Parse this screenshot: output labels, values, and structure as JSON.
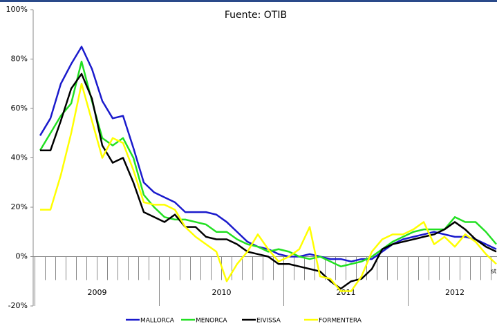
{
  "chart_data": {
    "type": "line",
    "title": "Fuente: OTIB",
    "annotation": "st",
    "categories": [
      null,
      null,
      null,
      null,
      null,
      null,
      null,
      null,
      null,
      null,
      null,
      null,
      null,
      null,
      null,
      null,
      null,
      null,
      null,
      null,
      null,
      null,
      null,
      null,
      null,
      null,
      null,
      null,
      null,
      null,
      null,
      null,
      null,
      null,
      null,
      null,
      null,
      null,
      null,
      null,
      null,
      null,
      null,
      null,
      null
    ],
    "year_labels": [
      "2009",
      "2010",
      "2011",
      "2012"
    ],
    "ylim": [
      -20,
      100
    ],
    "yticks": [
      {
        "value": -20,
        "label": "-20%"
      },
      {
        "value": 0,
        "label": "0%"
      },
      {
        "value": 20,
        "label": "20%"
      },
      {
        "value": 40,
        "label": "40%"
      },
      {
        "value": 60,
        "label": "60%"
      },
      {
        "value": 80,
        "label": "80%"
      },
      {
        "value": 100,
        "label": "100%"
      }
    ],
    "legend": "bottom",
    "series": [
      {
        "name": "MALLORCA",
        "color": "#1a1acc",
        "values": [
          49,
          56,
          70,
          78,
          85,
          76,
          63,
          56,
          57,
          44,
          30,
          26,
          24,
          22,
          18,
          18,
          18,
          17,
          14,
          10,
          6,
          4,
          3,
          1,
          0,
          0,
          1,
          0,
          -1,
          -1,
          -2,
          -1,
          -1,
          2,
          5,
          7,
          8,
          9,
          10,
          9,
          8,
          8,
          7,
          5,
          3
        ]
      },
      {
        "name": "MENORCA",
        "color": "#22e022",
        "values": [
          43,
          50,
          57,
          62,
          79,
          63,
          48,
          45,
          48,
          40,
          25,
          20,
          16,
          15,
          15,
          14,
          13,
          10,
          10,
          7,
          5,
          4,
          2,
          3,
          2,
          0,
          -1,
          0,
          -2,
          -4,
          -3,
          -2,
          0,
          3,
          6,
          8,
          10,
          11,
          11,
          11,
          16,
          14,
          14,
          10,
          5
        ]
      },
      {
        "name": "EIVISSA",
        "color": "#000000",
        "values": [
          43,
          43,
          55,
          68,
          74,
          64,
          45,
          38,
          40,
          30,
          18,
          16,
          14,
          17,
          12,
          12,
          8,
          7,
          7,
          5,
          2,
          1,
          0,
          -3,
          -3,
          -4,
          -5,
          -6,
          -10,
          -13,
          -10,
          -9,
          -5,
          3,
          5,
          6,
          7,
          8,
          9,
          11,
          14,
          11,
          7,
          4,
          2
        ]
      },
      {
        "name": "FORMENTERA",
        "color": "#ffff00",
        "values": [
          19,
          19,
          33,
          50,
          70,
          55,
          40,
          48,
          46,
          35,
          22,
          21,
          21,
          19,
          12,
          8,
          5,
          2,
          -10,
          -3,
          2,
          9,
          3,
          -2,
          0,
          3,
          12,
          -8,
          -9,
          -14,
          -14,
          -8,
          2,
          7,
          9,
          9,
          11,
          14,
          5,
          8,
          4,
          9,
          6,
          1,
          -3
        ]
      }
    ]
  }
}
